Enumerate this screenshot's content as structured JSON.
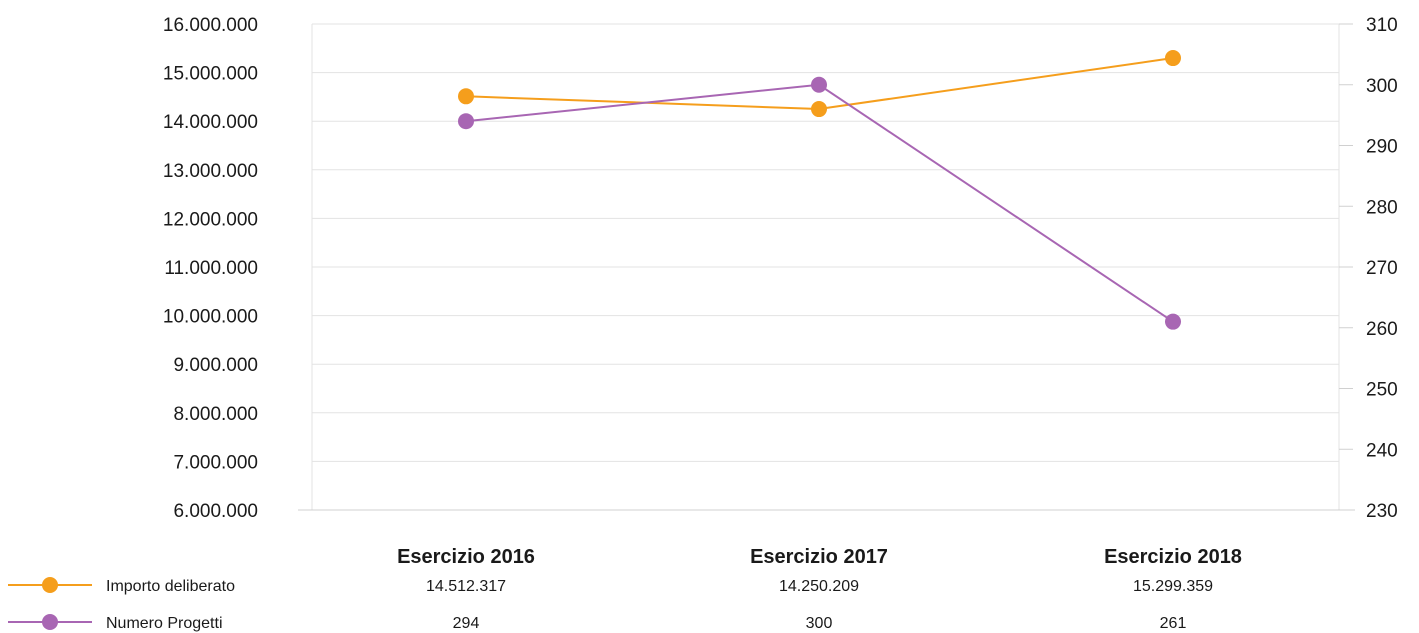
{
  "chart_data": {
    "type": "line",
    "categories": [
      "Esercizio 2016",
      "Esercizio 2017",
      "Esercizio 2018"
    ],
    "series": [
      {
        "name": "Importo deliberato",
        "axis": "left",
        "color": "#f59e1c",
        "values": [
          14512317,
          14250209,
          15299359
        ],
        "value_labels": [
          "14.512.317",
          "14.250.209",
          "15.299.359"
        ]
      },
      {
        "name": "Numero Progetti",
        "axis": "right",
        "color": "#a866b3",
        "values": [
          294,
          300,
          261
        ],
        "value_labels": [
          "294",
          "300",
          "261"
        ]
      }
    ],
    "y_left": {
      "range": [
        6000000,
        16000000
      ],
      "ticks": [
        "16.000.000",
        "15.000.000",
        "14.000.000",
        "13.000.000",
        "12.000.000",
        "11.000.000",
        "10.000.000",
        "9.000.000",
        "8.000.000",
        "7.000.000",
        "6.000.000"
      ]
    },
    "y_right": {
      "range": [
        230,
        310
      ],
      "ticks": [
        "310",
        "300",
        "290",
        "280",
        "270",
        "260",
        "250",
        "240",
        "230"
      ]
    },
    "grid": true,
    "legend": "bottom-left data table"
  }
}
